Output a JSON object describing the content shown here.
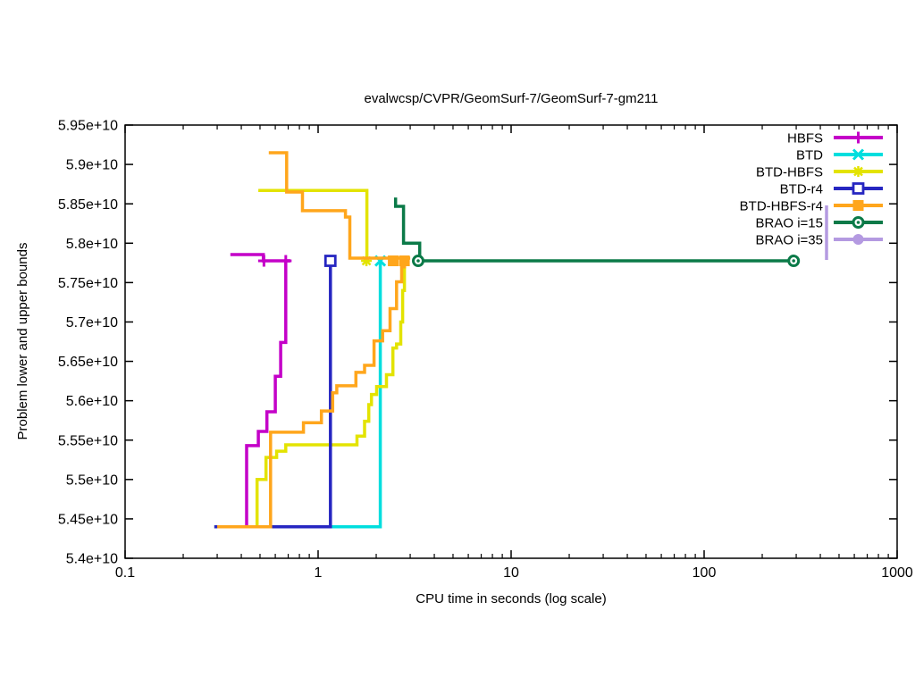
{
  "window": {
    "background": "#ffffff",
    "text_color": "#000000"
  },
  "chart_data": {
    "type": "line",
    "title": "evalwcsp/CVPR/GeomSurf-7/GeomSurf-7-gm211",
    "xlabel": "CPU time in seconds (log scale)",
    "ylabel": "Problem lower and upper bounds",
    "value_unit": "1e10",
    "grid": false,
    "legend_position": "top-right-inside",
    "x_axis": {
      "scale": "log",
      "min": 0.1,
      "max": 1000,
      "ticks": [
        {
          "v": 0.1,
          "label": "0.1"
        },
        {
          "v": 1,
          "label": "1"
        },
        {
          "v": 10,
          "label": "10"
        },
        {
          "v": 100,
          "label": "100"
        },
        {
          "v": 1000,
          "label": "1000"
        }
      ]
    },
    "y_axis": {
      "scale": "linear",
      "min": 5.4,
      "max": 5.95,
      "ticks": [
        {
          "v": 5.4,
          "label": "5.4e+10"
        },
        {
          "v": 5.45,
          "label": "5.45e+10"
        },
        {
          "v": 5.5,
          "label": "5.5e+10"
        },
        {
          "v": 5.55,
          "label": "5.55e+10"
        },
        {
          "v": 5.6,
          "label": "5.6e+10"
        },
        {
          "v": 5.65,
          "label": "5.65e+10"
        },
        {
          "v": 5.7,
          "label": "5.7e+10"
        },
        {
          "v": 5.75,
          "label": "5.75e+10"
        },
        {
          "v": 5.8,
          "label": "5.8e+10"
        },
        {
          "v": 5.85,
          "label": "5.85e+10"
        },
        {
          "v": 5.9,
          "label": "5.9e+10"
        },
        {
          "v": 5.95,
          "label": "5.95e+10"
        }
      ]
    },
    "optimum_value": 5.7776,
    "series": [
      {
        "name": "HBFS",
        "color": "#c400c8",
        "marker": "plus",
        "paths": [
          [
            [
              0.29,
              5.44
            ],
            [
              0.426,
              5.44
            ],
            [
              0.426,
              5.543
            ],
            [
              0.49,
              5.543
            ],
            [
              0.49,
              5.561
            ],
            [
              0.543,
              5.561
            ],
            [
              0.543,
              5.586
            ],
            [
              0.6,
              5.586
            ],
            [
              0.6,
              5.631
            ],
            [
              0.64,
              5.631
            ],
            [
              0.64,
              5.674
            ],
            [
              0.68,
              5.674
            ],
            [
              0.68,
              5.7776
            ],
            [
              0.717,
              5.7776
            ]
          ],
          [
            [
              0.351,
              5.7856
            ],
            [
              0.52,
              5.7856
            ],
            [
              0.52,
              5.7776
            ],
            [
              0.717,
              5.7776
            ]
          ]
        ],
        "markers": [
          [
            0.524,
            5.7776
          ],
          [
            0.68,
            5.7776
          ]
        ]
      },
      {
        "name": "BTD",
        "color": "#00dede",
        "marker": "cross",
        "paths": [
          [
            [
              0.29,
              5.44
            ],
            [
              2.1,
              5.44
            ],
            [
              2.1,
              5.7776
            ]
          ]
        ],
        "markers": [
          [
            2.1,
            5.7776
          ]
        ]
      },
      {
        "name": "BTD-HBFS",
        "color": "#e3e300",
        "marker": "star",
        "paths": [
          [
            [
              0.29,
              5.44
            ],
            [
              0.483,
              5.44
            ],
            [
              0.483,
              5.5
            ],
            [
              0.537,
              5.5
            ],
            [
              0.537,
              5.528
            ],
            [
              0.61,
              5.528
            ],
            [
              0.61,
              5.536
            ],
            [
              0.68,
              5.536
            ],
            [
              0.68,
              5.544
            ],
            [
              1.59,
              5.544
            ],
            [
              1.59,
              5.555
            ],
            [
              1.74,
              5.555
            ],
            [
              1.74,
              5.574
            ],
            [
              1.83,
              5.574
            ],
            [
              1.83,
              5.595
            ],
            [
              1.89,
              5.595
            ],
            [
              1.89,
              5.608
            ],
            [
              2.01,
              5.608
            ],
            [
              2.01,
              5.618
            ],
            [
              2.26,
              5.618
            ],
            [
              2.26,
              5.633
            ],
            [
              2.44,
              5.633
            ],
            [
              2.44,
              5.667
            ],
            [
              2.55,
              5.667
            ],
            [
              2.55,
              5.672
            ],
            [
              2.68,
              5.672
            ],
            [
              2.68,
              5.7
            ],
            [
              2.74,
              5.7
            ],
            [
              2.74,
              5.74
            ],
            [
              2.8,
              5.74
            ],
            [
              2.8,
              5.7776
            ]
          ],
          [
            [
              0.49,
              5.867
            ],
            [
              1.79,
              5.867
            ],
            [
              1.79,
              5.7776
            ]
          ]
        ],
        "markers": [
          [
            1.78,
            5.7776
          ]
        ]
      },
      {
        "name": "BTD-r4",
        "color": "#2626c1",
        "marker": "square-open",
        "paths": [
          [
            [
              0.29,
              5.44
            ],
            [
              1.158,
              5.44
            ],
            [
              1.158,
              5.7776
            ]
          ]
        ],
        "markers": [
          [
            1.158,
            5.7776
          ]
        ]
      },
      {
        "name": "BTD-HBFS-r4",
        "color": "#ffa61c",
        "marker": "square-filled",
        "paths": [
          [
            [
              0.3,
              5.44
            ],
            [
              0.567,
              5.44
            ],
            [
              0.567,
              5.56
            ],
            [
              0.84,
              5.56
            ],
            [
              0.84,
              5.572
            ],
            [
              1.04,
              5.572
            ],
            [
              1.04,
              5.587
            ],
            [
              1.19,
              5.587
            ],
            [
              1.19,
              5.61
            ],
            [
              1.25,
              5.61
            ],
            [
              1.25,
              5.619
            ],
            [
              1.57,
              5.619
            ],
            [
              1.57,
              5.636
            ],
            [
              1.74,
              5.636
            ],
            [
              1.74,
              5.645
            ],
            [
              1.95,
              5.645
            ],
            [
              1.95,
              5.676
            ],
            [
              2.16,
              5.676
            ],
            [
              2.16,
              5.689
            ],
            [
              2.36,
              5.689
            ],
            [
              2.36,
              5.717
            ],
            [
              2.55,
              5.717
            ],
            [
              2.55,
              5.751
            ],
            [
              2.71,
              5.751
            ],
            [
              2.71,
              5.77
            ],
            [
              2.8,
              5.77
            ],
            [
              2.8,
              5.7776
            ],
            [
              2.86,
              5.7776
            ]
          ],
          [
            [
              0.555,
              5.9148
            ],
            [
              0.687,
              5.9148
            ],
            [
              0.687,
              5.865
            ],
            [
              0.83,
              5.865
            ],
            [
              0.83,
              5.8412
            ],
            [
              1.385,
              5.8412
            ],
            [
              1.385,
              5.8332
            ],
            [
              1.46,
              5.8332
            ],
            [
              1.46,
              5.781
            ],
            [
              3.0,
              5.781
            ]
          ]
        ],
        "markers": [
          [
            2.45,
            5.7776
          ],
          [
            2.8,
            5.7776
          ]
        ]
      },
      {
        "name": "BRAO i=15",
        "color": "#0b7a48",
        "marker": "circle-dot",
        "paths": [
          [
            [
              2.52,
              5.858
            ],
            [
              2.52,
              5.8468
            ],
            [
              2.77,
              5.8468
            ],
            [
              2.77,
              5.8
            ],
            [
              3.36,
              5.8
            ],
            [
              3.36,
              5.7776
            ],
            [
              291,
              5.7776
            ]
          ]
        ],
        "markers": [
          [
            3.3,
            5.7776
          ],
          [
            291,
            5.7776
          ]
        ]
      },
      {
        "name": "BRAO i=35",
        "color": "#b49ae1",
        "marker": "circle-filled",
        "paths": [
          [
            [
              431,
              5.848
            ],
            [
              431,
              5.7788
            ]
          ]
        ],
        "markers": []
      }
    ]
  }
}
